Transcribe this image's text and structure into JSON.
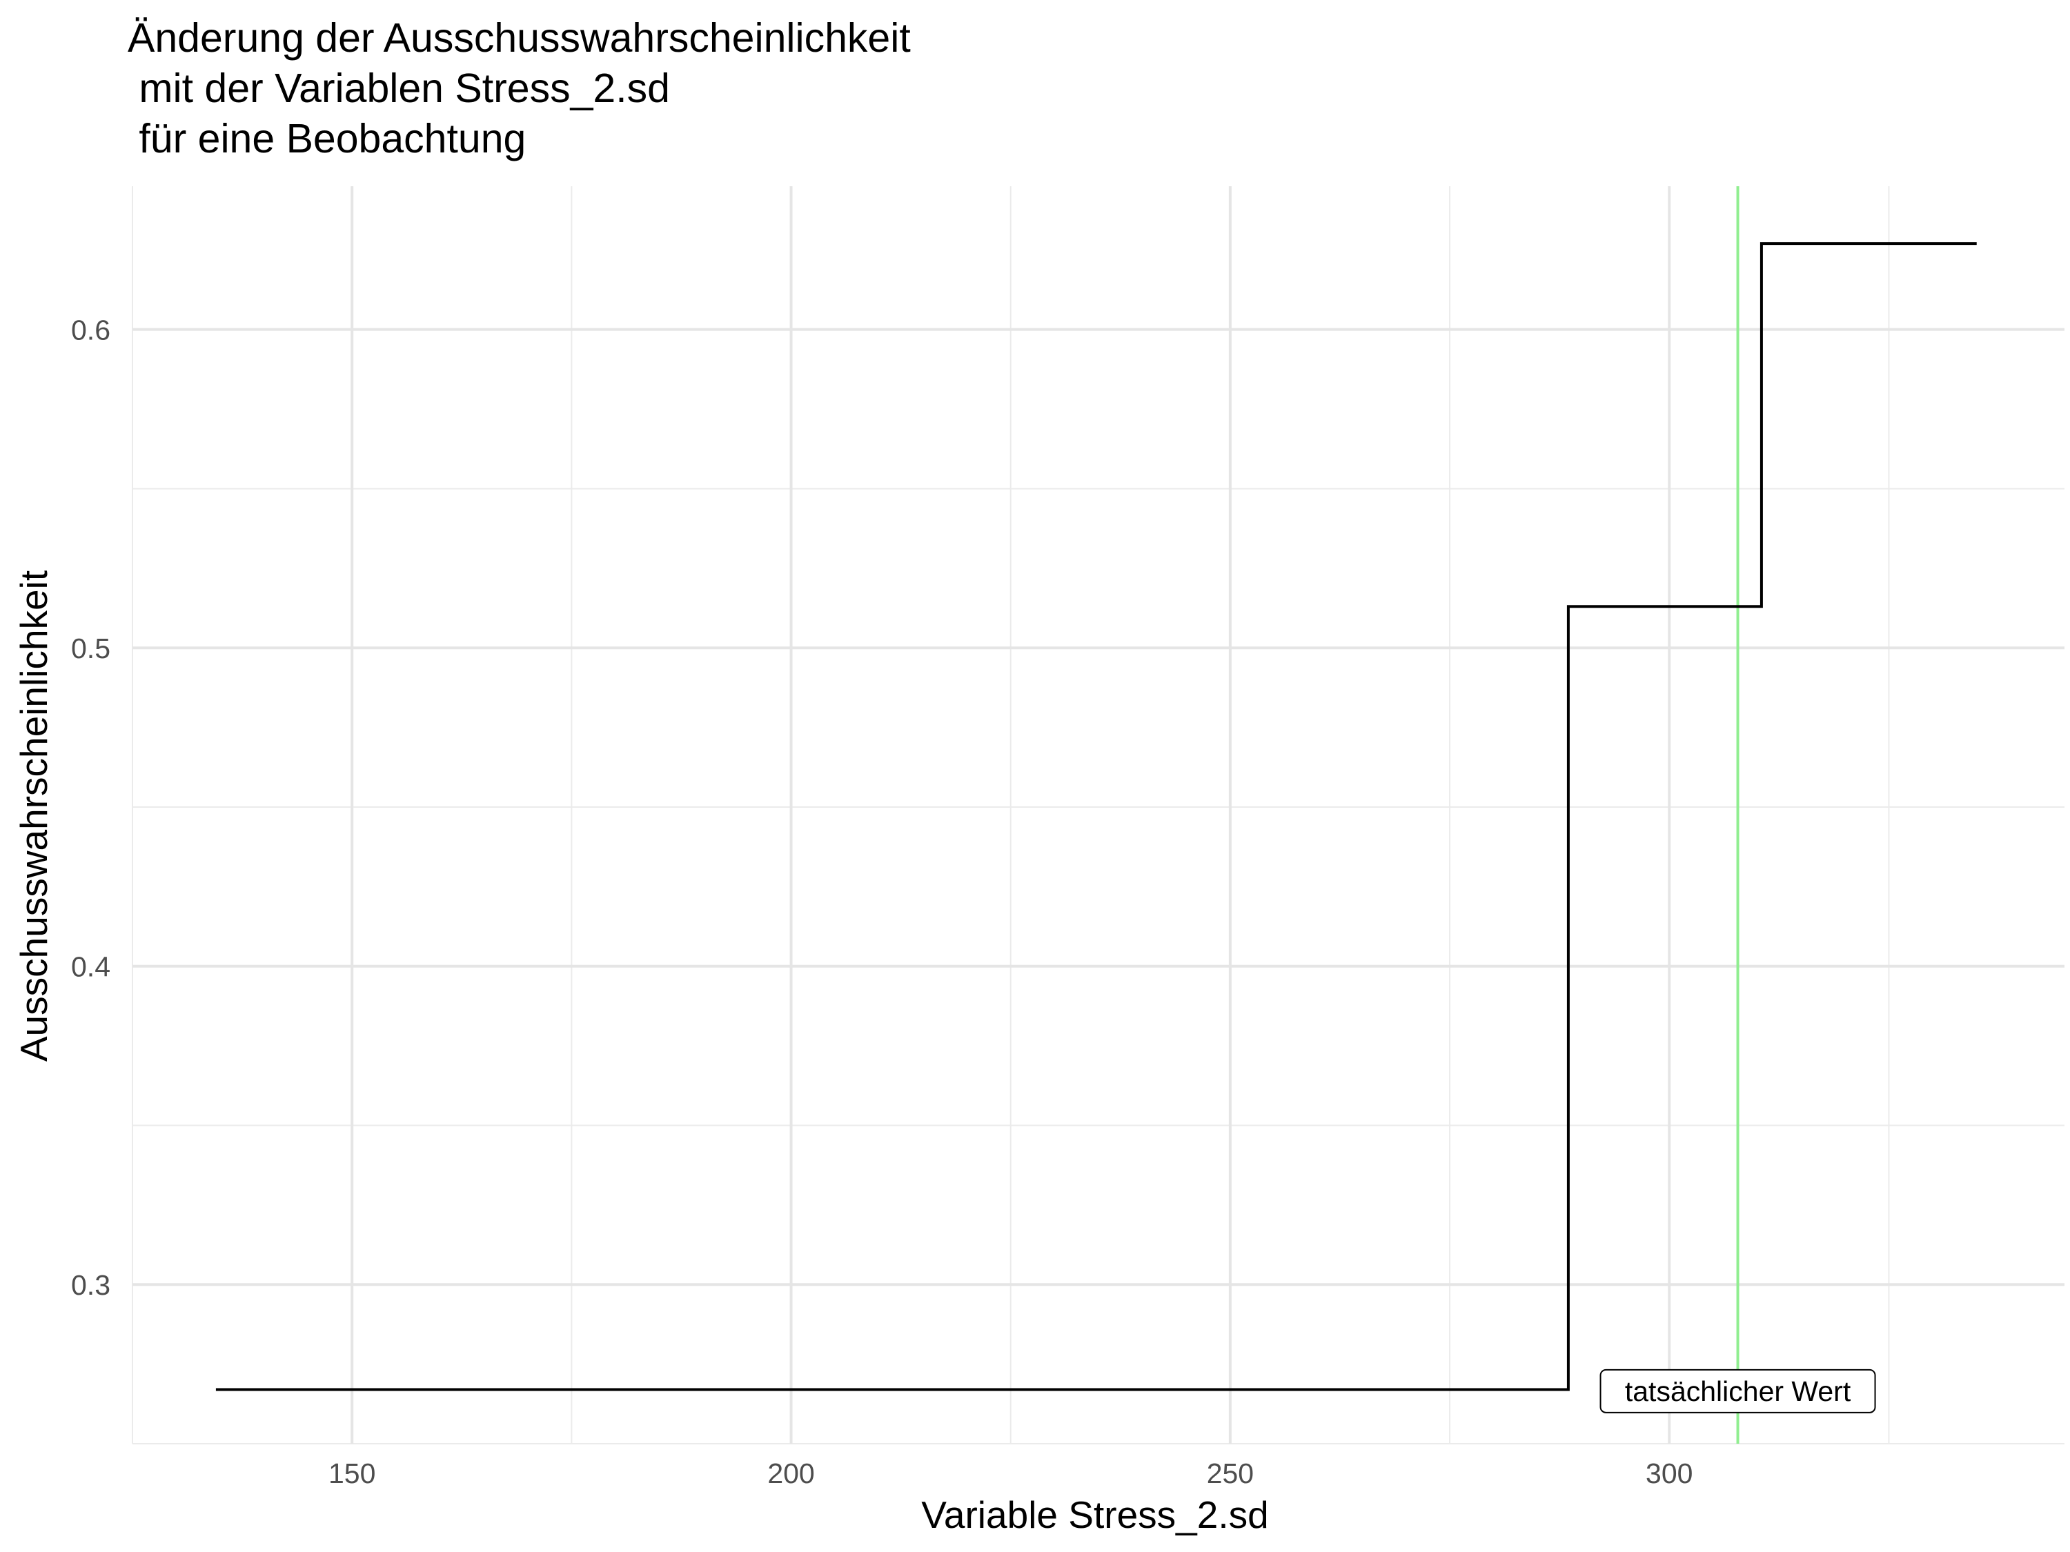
{
  "chart_data": {
    "type": "line",
    "title_lines": [
      "Änderung der Ausschusswahrscheinlichkeit",
      " mit der Variablen Stress_2.sd",
      " für eine Beobachtung"
    ],
    "xlabel": "Variable Stress_2.sd",
    "ylabel": "Ausschusswahrscheinlichkeit",
    "xlim": [
      125,
      345
    ],
    "ylim": [
      0.25,
      0.645
    ],
    "x_ticks": [
      150,
      200,
      250,
      300
    ],
    "x_tick_labels": [
      "150",
      "200",
      "250",
      "300"
    ],
    "x_minor_ticks": [
      125,
      175,
      225,
      275,
      325
    ],
    "y_ticks": [
      0.3,
      0.4,
      0.5,
      0.6
    ],
    "y_tick_labels": [
      "0.3",
      "0.4",
      "0.5",
      "0.6"
    ],
    "y_minor_ticks": [
      0.25,
      0.35,
      0.45,
      0.55
    ],
    "grid": true,
    "series": [
      {
        "step": "hv",
        "color": "#000000",
        "x": [
          134.5,
          288.5,
          310.5,
          335
        ],
        "y": [
          0.267,
          0.513,
          0.627,
          0.627
        ]
      }
    ],
    "reference_line": {
      "x": 307.8,
      "color": "#90EE90"
    },
    "annotation": {
      "text": "tatsächlicher Wert",
      "x": 307.8,
      "y": 0.2665
    }
  }
}
